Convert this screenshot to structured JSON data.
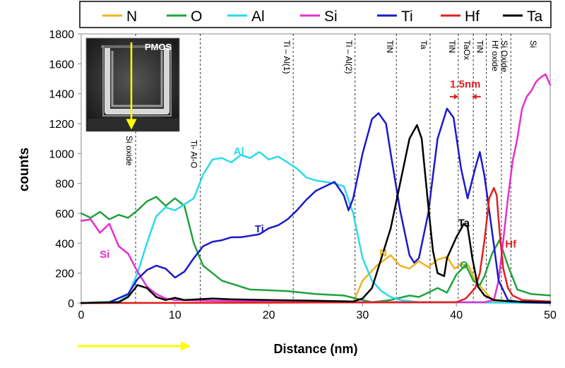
{
  "chart_data": {
    "type": "line",
    "xlabel": "Distance (nm)",
    "ylabel": "counts",
    "xlim": [
      0,
      50
    ],
    "ylim": [
      0,
      1800
    ],
    "x_ticks": [
      0,
      10,
      20,
      30,
      40,
      50
    ],
    "y_ticks": [
      0,
      200,
      400,
      600,
      800,
      1000,
      1200,
      1400,
      1600,
      1800
    ],
    "legend_position": "top",
    "series": [
      {
        "name": "N",
        "color": "#f2b21c",
        "points": [
          [
            0,
            0
          ],
          [
            20,
            2
          ],
          [
            29,
            5
          ],
          [
            30,
            150
          ],
          [
            31.5,
            250
          ],
          [
            33,
            320
          ],
          [
            34,
            250
          ],
          [
            35,
            230
          ],
          [
            36,
            280
          ],
          [
            37,
            240
          ],
          [
            38,
            290
          ],
          [
            39,
            310
          ],
          [
            39.8,
            230
          ],
          [
            40.5,
            260
          ],
          [
            41.3,
            250
          ],
          [
            42,
            150
          ],
          [
            43,
            80
          ],
          [
            44,
            10
          ],
          [
            50,
            0
          ]
        ]
      },
      {
        "name": "O",
        "color": "#1fa23f",
        "points": [
          [
            0,
            600
          ],
          [
            1,
            570
          ],
          [
            2,
            610
          ],
          [
            3,
            560
          ],
          [
            4,
            590
          ],
          [
            5,
            570
          ],
          [
            6,
            620
          ],
          [
            7,
            680
          ],
          [
            8,
            710
          ],
          [
            9,
            650
          ],
          [
            10,
            700
          ],
          [
            11,
            650
          ],
          [
            12,
            400
          ],
          [
            13,
            250
          ],
          [
            15,
            150
          ],
          [
            18,
            90
          ],
          [
            22,
            80
          ],
          [
            25,
            60
          ],
          [
            28,
            50
          ],
          [
            30,
            20
          ],
          [
            31,
            5
          ],
          [
            33,
            20
          ],
          [
            35,
            50
          ],
          [
            36,
            40
          ],
          [
            37,
            70
          ],
          [
            38,
            100
          ],
          [
            39,
            70
          ],
          [
            40,
            190
          ],
          [
            41,
            255
          ],
          [
            41.8,
            150
          ],
          [
            42.5,
            120
          ],
          [
            43,
            180
          ],
          [
            43.8,
            330
          ],
          [
            44.6,
            420
          ],
          [
            45.5,
            250
          ],
          [
            46.5,
            90
          ],
          [
            48,
            60
          ],
          [
            50,
            50
          ]
        ]
      },
      {
        "name": "Al",
        "color": "#2adbe9",
        "points": [
          [
            0,
            0
          ],
          [
            4,
            10
          ],
          [
            5,
            50
          ],
          [
            6,
            200
          ],
          [
            7,
            400
          ],
          [
            8,
            580
          ],
          [
            9,
            640
          ],
          [
            10,
            620
          ],
          [
            11,
            660
          ],
          [
            12,
            700
          ],
          [
            13,
            860
          ],
          [
            14,
            960
          ],
          [
            15,
            970
          ],
          [
            16,
            940
          ],
          [
            17,
            990
          ],
          [
            18,
            970
          ],
          [
            19,
            1010
          ],
          [
            20,
            960
          ],
          [
            21,
            980
          ],
          [
            22,
            940
          ],
          [
            23,
            900
          ],
          [
            24,
            840
          ],
          [
            25,
            820
          ],
          [
            27,
            800
          ],
          [
            28,
            780
          ],
          [
            29,
            600
          ],
          [
            30,
            300
          ],
          [
            31,
            150
          ],
          [
            32,
            80
          ],
          [
            33,
            40
          ],
          [
            34,
            20
          ],
          [
            36,
            5
          ],
          [
            50,
            0
          ]
        ]
      },
      {
        "name": "Si",
        "color": "#e52fd0",
        "points": [
          [
            0,
            550
          ],
          [
            1,
            560
          ],
          [
            2,
            470
          ],
          [
            3,
            530
          ],
          [
            4,
            380
          ],
          [
            5,
            330
          ],
          [
            6,
            210
          ],
          [
            7,
            110
          ],
          [
            8,
            60
          ],
          [
            9,
            30
          ],
          [
            10,
            20
          ],
          [
            14,
            15
          ],
          [
            20,
            10
          ],
          [
            30,
            5
          ],
          [
            38,
            5
          ],
          [
            43,
            5
          ],
          [
            44,
            20
          ],
          [
            44.5,
            150
          ],
          [
            45,
            420
          ],
          [
            45.5,
            700
          ],
          [
            46,
            950
          ],
          [
            46.5,
            1100
          ],
          [
            47,
            1300
          ],
          [
            47.5,
            1380
          ],
          [
            48,
            1420
          ],
          [
            48.5,
            1480
          ],
          [
            49,
            1510
          ],
          [
            49.5,
            1530
          ],
          [
            50,
            1460
          ]
        ]
      },
      {
        "name": "Ti",
        "color": "#1a1ac9",
        "points": [
          [
            0,
            0
          ],
          [
            3,
            5
          ],
          [
            5,
            60
          ],
          [
            6,
            160
          ],
          [
            7,
            220
          ],
          [
            8,
            250
          ],
          [
            9,
            230
          ],
          [
            10,
            170
          ],
          [
            11,
            210
          ],
          [
            12,
            300
          ],
          [
            13,
            380
          ],
          [
            14,
            410
          ],
          [
            15,
            420
          ],
          [
            16,
            440
          ],
          [
            17,
            440
          ],
          [
            18,
            450
          ],
          [
            19,
            460
          ],
          [
            20,
            500
          ],
          [
            21,
            520
          ],
          [
            22,
            560
          ],
          [
            23,
            620
          ],
          [
            24,
            690
          ],
          [
            25,
            750
          ],
          [
            26,
            780
          ],
          [
            27,
            810
          ],
          [
            28,
            720
          ],
          [
            28.5,
            620
          ],
          [
            29,
            700
          ],
          [
            30,
            1000
          ],
          [
            31,
            1230
          ],
          [
            31.7,
            1270
          ],
          [
            32.5,
            1200
          ],
          [
            33,
            1000
          ],
          [
            34,
            620
          ],
          [
            35,
            320
          ],
          [
            35.5,
            270
          ],
          [
            36,
            300
          ],
          [
            37,
            600
          ],
          [
            38,
            1100
          ],
          [
            39,
            1300
          ],
          [
            39.7,
            1240
          ],
          [
            40.5,
            900
          ],
          [
            41.2,
            700
          ],
          [
            42,
            900
          ],
          [
            42.5,
            1010
          ],
          [
            43,
            850
          ],
          [
            43.8,
            480
          ],
          [
            44.5,
            150
          ],
          [
            45.5,
            20
          ],
          [
            47,
            5
          ],
          [
            50,
            0
          ]
        ]
      },
      {
        "name": "Hf",
        "color": "#e02020",
        "points": [
          [
            0,
            0
          ],
          [
            40,
            5
          ],
          [
            41,
            30
          ],
          [
            42,
            100
          ],
          [
            42.5,
            200
          ],
          [
            43,
            420
          ],
          [
            43.5,
            700
          ],
          [
            44,
            770
          ],
          [
            44.3,
            720
          ],
          [
            44.6,
            480
          ],
          [
            45,
            230
          ],
          [
            45.5,
            100
          ],
          [
            46,
            50
          ],
          [
            47,
            20
          ],
          [
            50,
            10
          ]
        ]
      },
      {
        "name": "Ta",
        "color": "#000000",
        "points": [
          [
            0,
            0
          ],
          [
            4,
            5
          ],
          [
            5,
            40
          ],
          [
            6,
            120
          ],
          [
            7,
            100
          ],
          [
            8,
            40
          ],
          [
            9,
            20
          ],
          [
            10,
            35
          ],
          [
            11,
            20
          ],
          [
            14,
            30
          ],
          [
            16,
            25
          ],
          [
            20,
            20
          ],
          [
            25,
            15
          ],
          [
            29,
            10
          ],
          [
            30,
            30
          ],
          [
            31,
            100
          ],
          [
            32,
            300
          ],
          [
            33,
            500
          ],
          [
            34,
            800
          ],
          [
            35,
            1100
          ],
          [
            35.8,
            1190
          ],
          [
            36.3,
            1100
          ],
          [
            37,
            650
          ],
          [
            37.5,
            350
          ],
          [
            38,
            200
          ],
          [
            38.7,
            180
          ],
          [
            39,
            300
          ],
          [
            40,
            440
          ],
          [
            40.8,
            530
          ],
          [
            41.2,
            510
          ],
          [
            41.7,
            300
          ],
          [
            42.3,
            110
          ],
          [
            43,
            50
          ],
          [
            44,
            20
          ],
          [
            46,
            10
          ],
          [
            50,
            5
          ]
        ]
      }
    ],
    "region_labels": [
      {
        "x": 5.8,
        "text": "Si oxide"
      },
      {
        "x": 12.7,
        "text": "Ti- Al-O"
      },
      {
        "x": 22.6,
        "text": "Ti – Al(1)"
      },
      {
        "x": 29.2,
        "text": "Ti – Al(2)"
      },
      {
        "x": 33.6,
        "text": "TiN"
      },
      {
        "x": 37.2,
        "text": "Ta"
      },
      {
        "x": 40.2,
        "text": "TiN"
      },
      {
        "x": 41.8,
        "text": "TaOx"
      },
      {
        "x": 43.2,
        "text": "TiN"
      },
      {
        "x": 44.8,
        "text": "Hf oxide"
      },
      {
        "x": 45.8,
        "text": "Si Oxide"
      },
      {
        "x": 50,
        "text": "Si"
      }
    ],
    "annotations": [
      {
        "text": "Al",
        "series": "Al"
      },
      {
        "text": "Ti",
        "series": "Ti"
      },
      {
        "text": "Si",
        "series": "Si"
      },
      {
        "text": "N",
        "series": "N"
      },
      {
        "text": "O",
        "series": "O"
      },
      {
        "text": "Ta",
        "series": "Ta"
      },
      {
        "text": "Hf",
        "series": "Hf"
      }
    ],
    "dimension_annotation": {
      "text": "1.5nm",
      "color": "#e02020",
      "from_x": 40.2,
      "to_x": 41.7
    },
    "inset": {
      "label": "PMOS"
    }
  }
}
